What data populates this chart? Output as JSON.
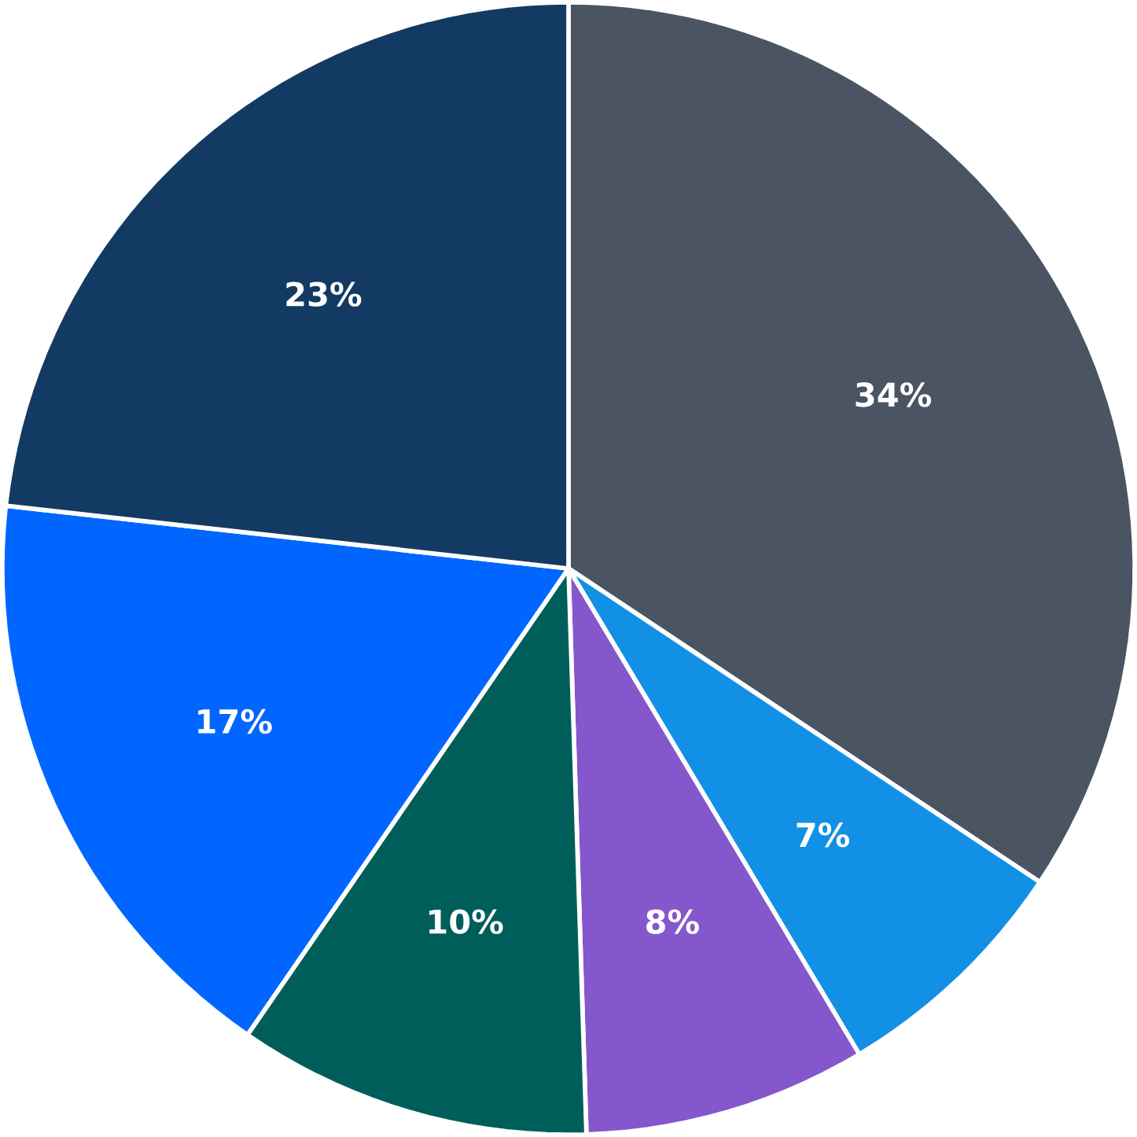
{
  "chart_data": {
    "type": "pie",
    "categories": [
      null,
      null,
      null,
      null,
      null,
      null
    ],
    "values": [
      34,
      7,
      8,
      10,
      17,
      23
    ],
    "colors": [
      "#4a5463",
      "#1190e6",
      "#8557cc",
      "#005e5a",
      "#0066ff",
      "#133a63"
    ],
    "value_labels": [
      "34%",
      "7%",
      "8%",
      "10%",
      "17%",
      "23%"
    ]
  }
}
